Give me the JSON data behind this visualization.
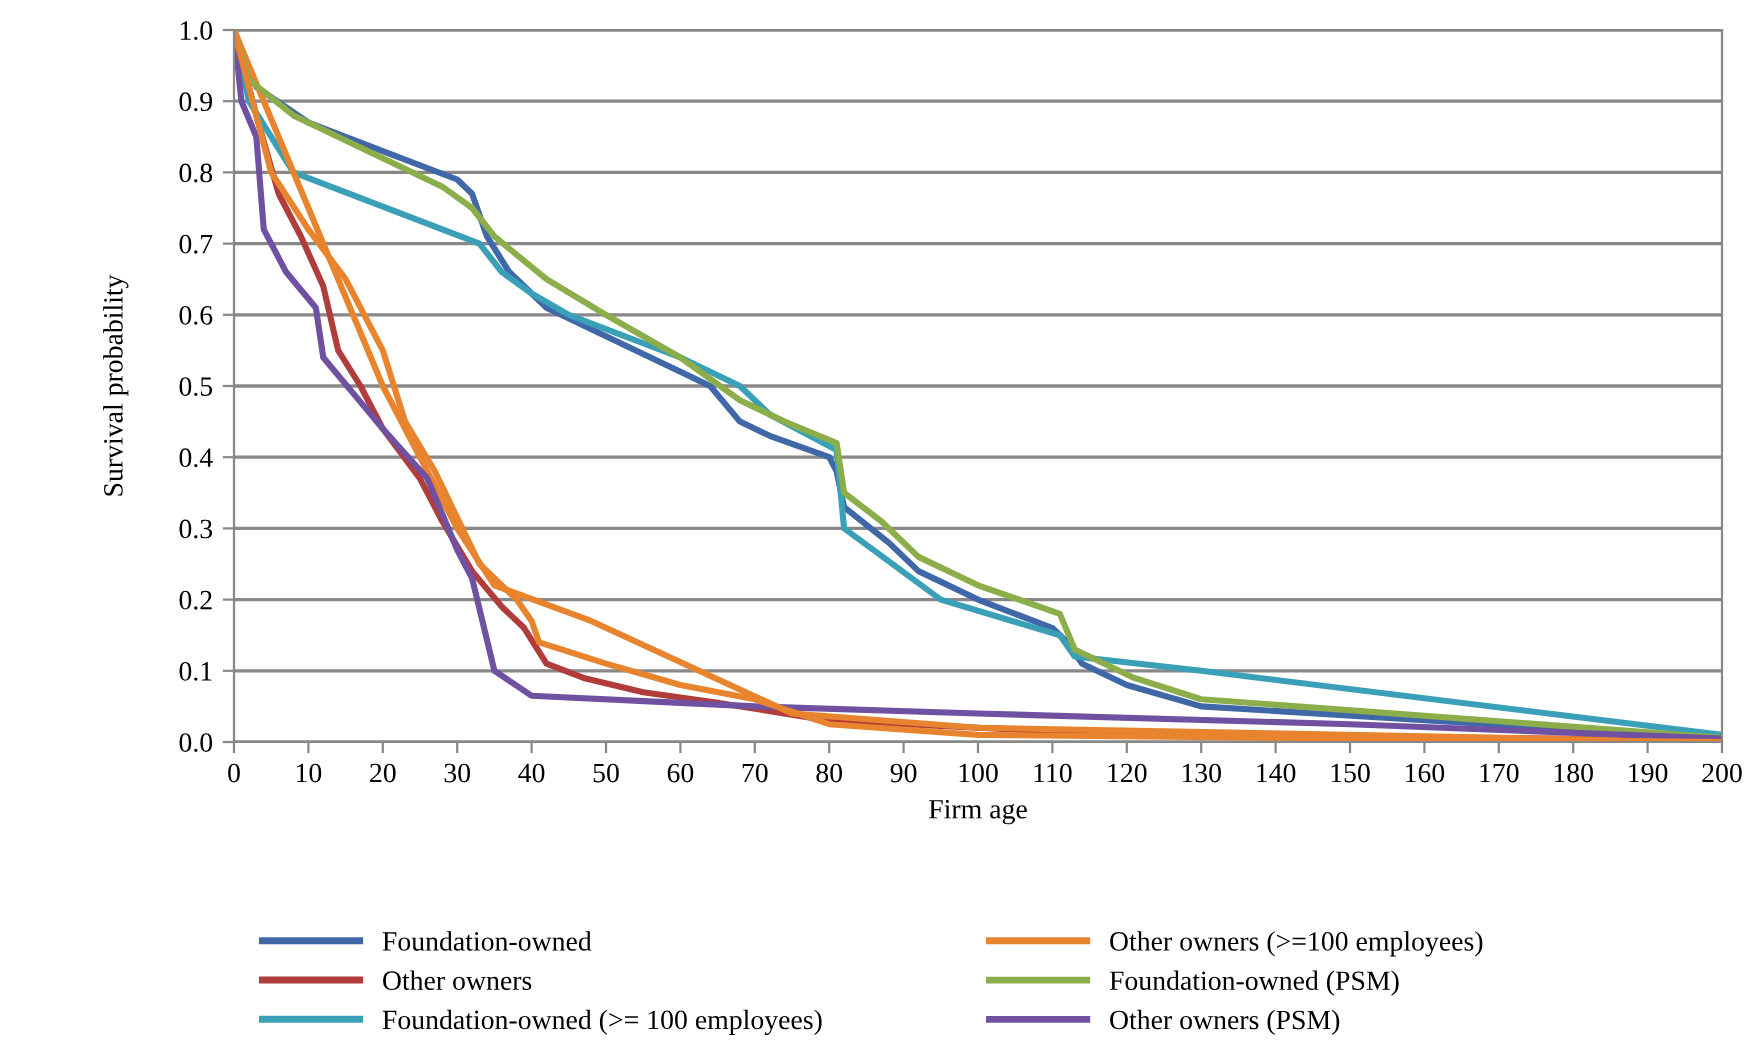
{
  "chart_data": {
    "type": "line",
    "xlabel": "Firm age",
    "ylabel": "Survival probability",
    "xlim": [
      0,
      200
    ],
    "xticks": [
      0,
      10,
      20,
      30,
      40,
      50,
      60,
      70,
      80,
      90,
      100,
      110,
      120,
      130,
      140,
      150,
      160,
      170,
      180,
      190,
      200
    ],
    "ylim": [
      0,
      1
    ],
    "yticks": [
      {
        "value": 0,
        "label": "0.0"
      },
      0.1,
      0.2,
      0.3,
      0.4,
      0.5,
      0.6,
      0.7,
      0.8,
      0.9,
      {
        "value": 1,
        "label": "1.0"
      }
    ],
    "grid": "y",
    "legend": "bottom",
    "marker": "none",
    "line_style": "solid",
    "series": [
      {
        "name": "Foundation-owned",
        "color": "#4068a8",
        "x": [
          0,
          3,
          10,
          20,
          30,
          32,
          34,
          37,
          42,
          50,
          60,
          64,
          68,
          72,
          80,
          81,
          82,
          88,
          92,
          100,
          110,
          112,
          114,
          120,
          130,
          200
        ],
        "values": [
          1,
          0.92,
          0.87,
          0.83,
          0.79,
          0.77,
          0.71,
          0.66,
          0.61,
          0.57,
          0.52,
          0.5,
          0.45,
          0.43,
          0.4,
          0.38,
          0.33,
          0.28,
          0.24,
          0.2,
          0.16,
          0.14,
          0.11,
          0.08,
          0.05,
          0.005
        ]
      },
      {
        "name": "Other owners",
        "color": "#b03c3c",
        "x": [
          0,
          3,
          6,
          9,
          12,
          14,
          17,
          20,
          25,
          28,
          32,
          36,
          39,
          42,
          47,
          55,
          65,
          80,
          100,
          120,
          200
        ],
        "values": [
          1,
          0.88,
          0.77,
          0.71,
          0.64,
          0.55,
          0.5,
          0.44,
          0.37,
          0.31,
          0.24,
          0.19,
          0.16,
          0.11,
          0.09,
          0.07,
          0.055,
          0.03,
          0.02,
          0.01,
          0.003
        ]
      },
      {
        "name": "Foundation-owned (>= 100 employees)",
        "color": "#3aa0b8",
        "x": [
          0,
          2,
          5,
          8,
          13,
          33,
          36,
          40,
          45,
          60,
          68,
          72,
          81,
          82,
          95,
          111,
          113,
          130,
          200
        ],
        "values": [
          1,
          0.9,
          0.85,
          0.8,
          0.78,
          0.7,
          0.66,
          0.63,
          0.6,
          0.54,
          0.5,
          0.46,
          0.41,
          0.3,
          0.2,
          0.15,
          0.12,
          0.1,
          0.01
        ]
      },
      {
        "name": "Other owners (>=100 employees)",
        "color": "#e8832e",
        "x": [
          0,
          10,
          20,
          30,
          35,
          48,
          75,
          100,
          200
        ],
        "values": [
          1,
          0.75,
          0.5,
          0.3,
          0.22,
          0.17,
          0.04,
          0.02,
          0
        ]
      },
      {
        "name": "Foundation-owned (PSM)",
        "color": "#8bad4a",
        "x": [
          0,
          2,
          8,
          20,
          28,
          32,
          35,
          42,
          50,
          60,
          68,
          74,
          81,
          82,
          87,
          92,
          100,
          111,
          113,
          121,
          130,
          200
        ],
        "values": [
          1,
          0.93,
          0.88,
          0.82,
          0.78,
          0.75,
          0.71,
          0.65,
          0.6,
          0.54,
          0.48,
          0.45,
          0.42,
          0.35,
          0.31,
          0.26,
          0.22,
          0.18,
          0.13,
          0.09,
          0.06,
          0.006
        ]
      },
      {
        "name": "Other owners (PSM)",
        "color": "#7050a0",
        "x": [
          0,
          1,
          3,
          4,
          5,
          7,
          11,
          12,
          16,
          20,
          26,
          30,
          32,
          35,
          40,
          60,
          70,
          100,
          150,
          200
        ],
        "values": [
          1,
          0.9,
          0.85,
          0.72,
          0.7,
          0.66,
          0.61,
          0.54,
          0.49,
          0.44,
          0.37,
          0.27,
          0.23,
          0.1,
          0.065,
          0.055,
          0.05,
          0.04,
          0.025,
          0.005
        ]
      },
      {
        "color": "#e8832e",
        "x": [
          0,
          5,
          10,
          15,
          20,
          23,
          27,
          33,
          38,
          40,
          41,
          44,
          50,
          60,
          70,
          80,
          100,
          200
        ],
        "values": [
          1,
          0.8,
          0.72,
          0.65,
          0.55,
          0.45,
          0.38,
          0.25,
          0.2,
          0.17,
          0.14,
          0.13,
          0.11,
          0.08,
          0.06,
          0.025,
          0.01,
          0
        ]
      }
    ]
  }
}
